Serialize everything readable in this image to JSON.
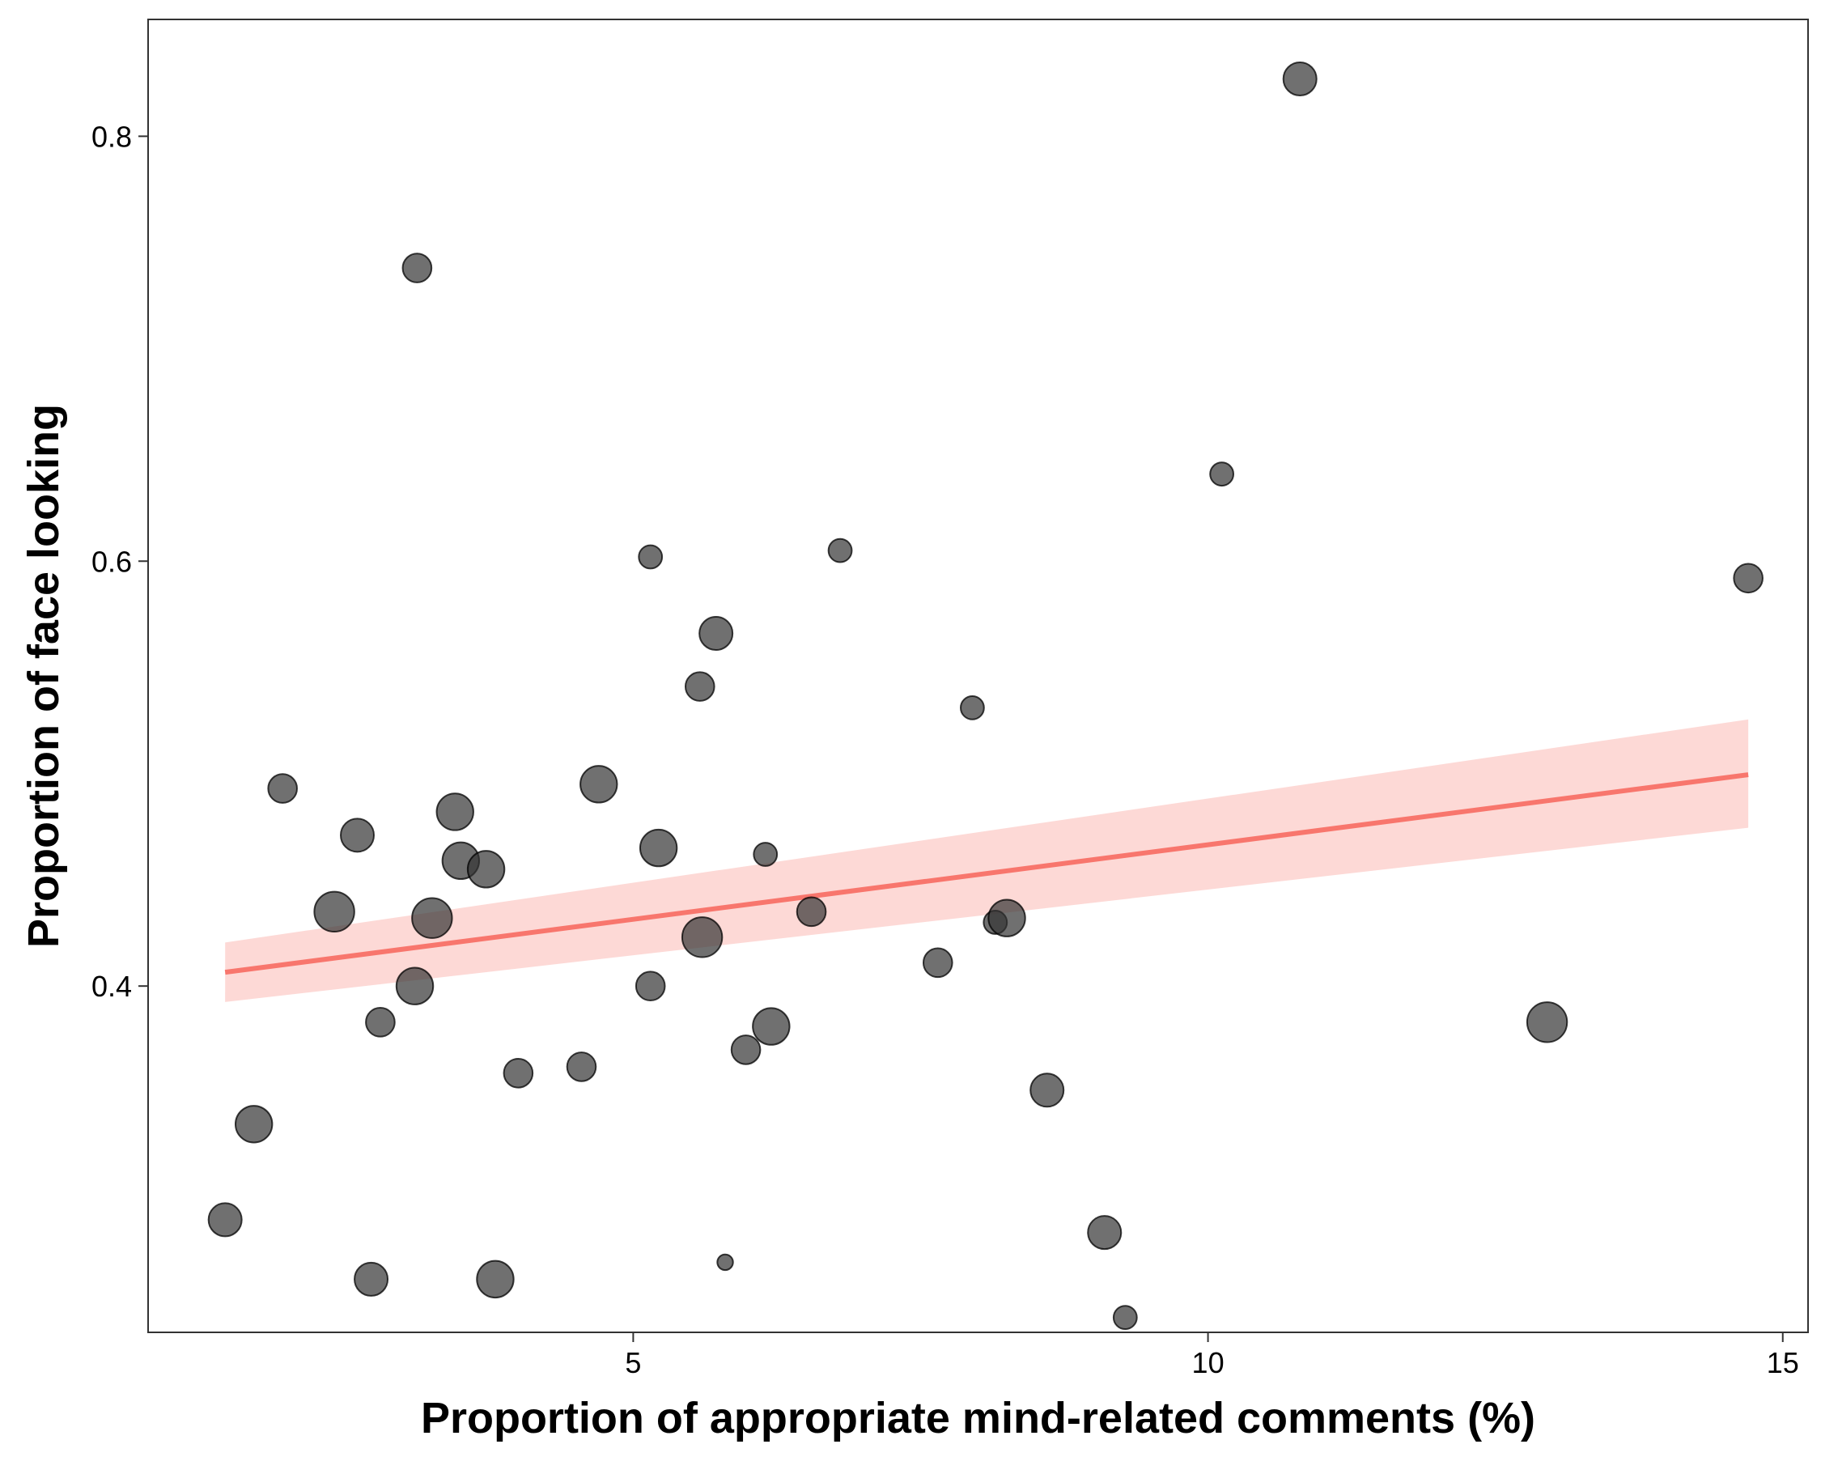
{
  "chart_data": {
    "type": "scatter",
    "title": "",
    "xlabel": "Proportion of appropriate mind-related comments (%)",
    "ylabel": "Proportion of face looking",
    "xlim": [
      0.78,
      15.22
    ],
    "ylim": [
      0.237,
      0.855
    ],
    "x_ticks": [
      {
        "value": 5,
        "label": "5"
      },
      {
        "value": 10,
        "label": "10"
      },
      {
        "value": 15,
        "label": "15"
      }
    ],
    "y_ticks": [
      {
        "value": 0.4,
        "label": "0.4"
      },
      {
        "value": 0.6,
        "label": "0.6"
      },
      {
        "value": 0.8,
        "label": "0.8"
      }
    ],
    "grid": false,
    "legend": "none",
    "colors": {
      "point": "#333333",
      "point_stroke": "#000000",
      "fit_line": "#f8766d",
      "ribbon": "#f8766d",
      "frame": "#333333"
    },
    "points": [
      {
        "x": 1.45,
        "y": 0.29,
        "size": 3
      },
      {
        "x": 1.7,
        "y": 0.335,
        "size": 4
      },
      {
        "x": 1.95,
        "y": 0.493,
        "size": 2
      },
      {
        "x": 2.4,
        "y": 0.435,
        "size": 5
      },
      {
        "x": 2.6,
        "y": 0.471,
        "size": 3
      },
      {
        "x": 2.72,
        "y": 0.262,
        "size": 3
      },
      {
        "x": 2.8,
        "y": 0.383,
        "size": 2
      },
      {
        "x": 3.1,
        "y": 0.4,
        "size": 4
      },
      {
        "x": 3.12,
        "y": 0.738,
        "size": 2
      },
      {
        "x": 3.25,
        "y": 0.432,
        "size": 5
      },
      {
        "x": 3.45,
        "y": 0.482,
        "size": 4
      },
      {
        "x": 3.5,
        "y": 0.459,
        "size": 4
      },
      {
        "x": 3.72,
        "y": 0.455,
        "size": 4
      },
      {
        "x": 3.8,
        "y": 0.262,
        "size": 4
      },
      {
        "x": 4.0,
        "y": 0.359,
        "size": 2
      },
      {
        "x": 4.55,
        "y": 0.362,
        "size": 2
      },
      {
        "x": 4.7,
        "y": 0.495,
        "size": 4
      },
      {
        "x": 5.15,
        "y": 0.4,
        "size": 2
      },
      {
        "x": 5.15,
        "y": 0.602,
        "size": 1
      },
      {
        "x": 5.22,
        "y": 0.465,
        "size": 4
      },
      {
        "x": 5.58,
        "y": 0.541,
        "size": 2
      },
      {
        "x": 5.6,
        "y": 0.423,
        "size": 5
      },
      {
        "x": 5.72,
        "y": 0.566,
        "size": 3
      },
      {
        "x": 5.8,
        "y": 0.27,
        "size": 0.2
      },
      {
        "x": 5.98,
        "y": 0.37,
        "size": 2
      },
      {
        "x": 6.15,
        "y": 0.462,
        "size": 1
      },
      {
        "x": 6.2,
        "y": 0.381,
        "size": 4
      },
      {
        "x": 6.55,
        "y": 0.435,
        "size": 2
      },
      {
        "x": 6.8,
        "y": 0.605,
        "size": 1
      },
      {
        "x": 7.65,
        "y": 0.411,
        "size": 2
      },
      {
        "x": 7.95,
        "y": 0.531,
        "size": 1
      },
      {
        "x": 8.15,
        "y": 0.43,
        "size": 1
      },
      {
        "x": 8.25,
        "y": 0.432,
        "size": 4
      },
      {
        "x": 8.6,
        "y": 0.351,
        "size": 3
      },
      {
        "x": 9.1,
        "y": 0.284,
        "size": 3
      },
      {
        "x": 9.28,
        "y": 0.244,
        "size": 1
      },
      {
        "x": 10.12,
        "y": 0.641,
        "size": 1
      },
      {
        "x": 10.8,
        "y": 0.827,
        "size": 3
      },
      {
        "x": 12.95,
        "y": 0.383,
        "size": 5
      },
      {
        "x": 14.7,
        "y": 0.592,
        "size": 2
      }
    ],
    "fit": {
      "type": "linear",
      "x": [
        1.45,
        14.7
      ],
      "y": [
        0.4065,
        0.4995
      ],
      "ci_lower": [
        0.3925,
        0.4745
      ],
      "ci_upper": [
        0.4205,
        0.5255
      ]
    }
  }
}
